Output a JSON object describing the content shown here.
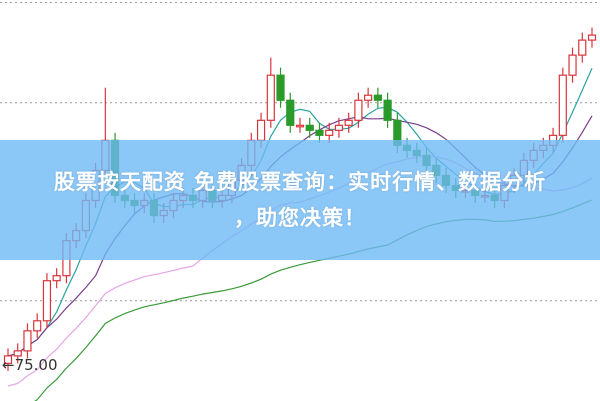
{
  "banner": {
    "line1": "股票按天配资 免费股票查询：实时行情、数据分析",
    "line2": "，助您决策！"
  },
  "chart_data": {
    "type": "candlestick",
    "ylim": [
      73.7,
      89.7
    ],
    "grid": {
      "horizontal_dotted": [
        77.7,
        85.6,
        89.6
      ]
    },
    "annotation": {
      "text": "←75.00",
      "value": 75.0
    },
    "colors": {
      "up": "#d9343a",
      "down": "#2a9a2a",
      "ma_lines": [
        "#2aa3a0",
        "#7a3d8c",
        "#e6a6e6",
        "#3a9a3a"
      ]
    },
    "open": [
      75.2,
      75.5,
      75.7,
      76.5,
      76.9,
      78.5,
      78.7,
      80.1,
      80.5,
      81.7,
      82.9,
      84.1,
      81.9,
      81.7,
      81.5,
      81.7,
      81.1,
      81.3,
      81.7,
      81.9,
      81.7,
      82.1,
      81.7,
      81.9,
      82.5,
      83.1,
      84.1,
      84.9,
      86.7,
      85.7,
      84.7,
      84.7,
      84.5,
      84.3,
      84.5,
      84.7,
      84.9,
      85.7,
      85.9,
      85.7,
      84.9,
      83.9,
      83.7,
      83.5,
      83.1,
      82.7,
      82.3,
      82.1,
      82.1,
      81.9,
      81.9,
      81.7,
      82.3,
      82.7,
      83.3,
      83.7,
      83.9,
      84.3,
      86.7,
      87.5,
      88.1
    ],
    "close": [
      75.5,
      75.7,
      76.5,
      76.9,
      78.5,
      78.7,
      80.1,
      80.5,
      81.7,
      82.9,
      84.1,
      81.9,
      81.7,
      81.5,
      81.7,
      81.1,
      81.3,
      81.7,
      81.9,
      81.7,
      82.1,
      81.7,
      81.9,
      82.5,
      83.1,
      84.1,
      84.9,
      86.7,
      85.7,
      84.7,
      84.7,
      84.5,
      84.3,
      84.5,
      84.7,
      84.9,
      85.7,
      85.9,
      85.7,
      84.9,
      83.9,
      83.7,
      83.5,
      83.1,
      82.7,
      82.3,
      82.1,
      82.1,
      81.9,
      81.9,
      81.7,
      82.3,
      82.7,
      83.3,
      83.7,
      83.9,
      84.3,
      86.7,
      87.5,
      88.1,
      88.3
    ],
    "high": [
      75.8,
      76.0,
      76.8,
      77.2,
      78.8,
      79.0,
      80.4,
      80.8,
      82.0,
      83.2,
      86.2,
      84.4,
      82.2,
      82.0,
      82.0,
      82.0,
      81.6,
      82.0,
      82.2,
      82.2,
      82.4,
      82.4,
      82.2,
      82.8,
      83.4,
      84.4,
      85.2,
      87.4,
      87.0,
      86.0,
      85.0,
      85.0,
      84.8,
      84.8,
      85.0,
      85.2,
      86.0,
      86.2,
      86.2,
      86.0,
      85.2,
      84.2,
      84.0,
      83.8,
      83.4,
      83.0,
      82.6,
      82.4,
      82.4,
      82.2,
      82.2,
      82.6,
      83.0,
      83.6,
      84.0,
      84.2,
      84.6,
      87.0,
      87.8,
      88.4,
      88.6
    ],
    "low": [
      74.9,
      75.2,
      75.4,
      76.2,
      76.6,
      78.2,
      78.4,
      79.8,
      80.2,
      81.4,
      82.6,
      81.6,
      81.4,
      81.2,
      81.2,
      80.8,
      80.8,
      81.0,
      81.4,
      81.4,
      81.4,
      81.4,
      81.4,
      81.6,
      82.2,
      82.8,
      83.8,
      84.6,
      85.4,
      84.4,
      84.4,
      84.2,
      84.0,
      84.0,
      84.2,
      84.4,
      84.6,
      85.4,
      85.4,
      84.6,
      83.6,
      83.4,
      83.2,
      82.8,
      82.4,
      82.0,
      81.8,
      81.8,
      81.6,
      81.6,
      81.4,
      81.4,
      82.0,
      82.4,
      83.0,
      83.4,
      83.6,
      84.0,
      86.4,
      87.2,
      87.8
    ]
  }
}
